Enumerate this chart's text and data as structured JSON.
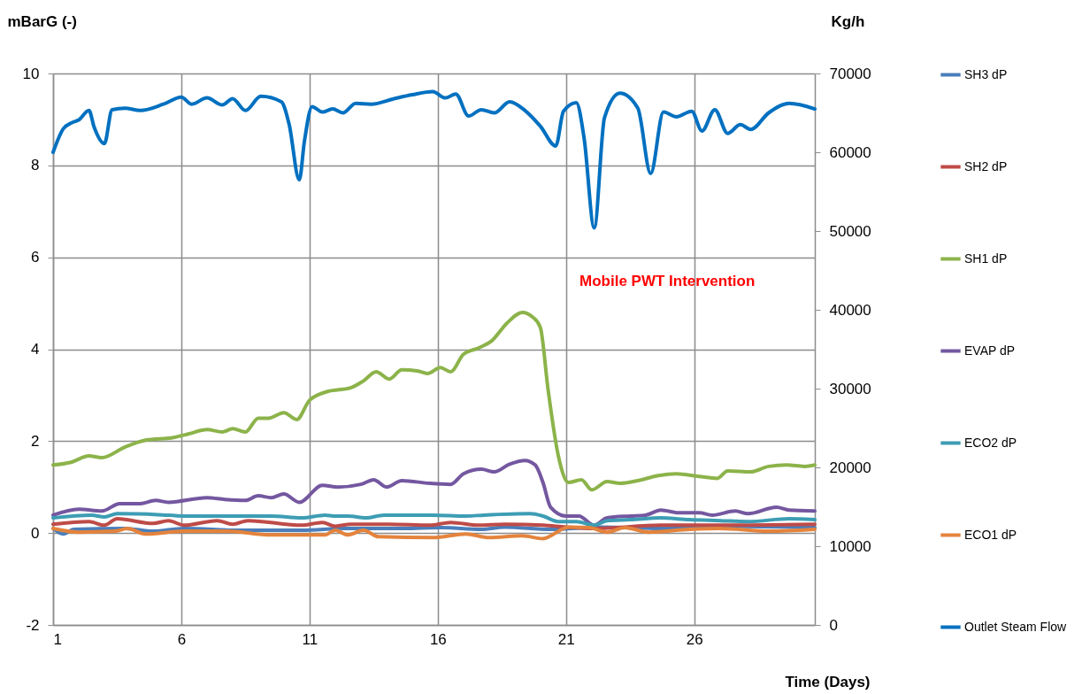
{
  "chart_data": {
    "type": "line",
    "xlabel": "Time (Days)",
    "ylabel": "mBarG (-)",
    "y2label": "Kg/h",
    "xlim": [
      1,
      30.7
    ],
    "xticks": [
      1,
      6,
      11,
      16,
      21,
      26
    ],
    "ylim": [
      -2,
      10
    ],
    "yticks": [
      -2,
      0,
      2,
      4,
      6,
      8,
      10
    ],
    "y2lim": [
      0,
      70000
    ],
    "y2ticks": [
      0,
      10000,
      20000,
      30000,
      40000,
      50000,
      60000,
      70000
    ],
    "grid": true,
    "legend": "right",
    "annotations": [
      "Mobile PWT Intervention"
    ],
    "series": [
      {
        "name": "SH3 dP",
        "color": "#4a7ebb",
        "x": [
          1,
          1.4,
          1.8,
          3.8,
          4.9,
          6.1,
          8.3,
          10.7,
          12.4,
          14.7,
          16.1,
          17.7,
          18.6,
          20.4,
          22.4,
          24.7,
          27,
          30.7
        ],
        "values": [
          0.1,
          -0.02,
          0.08,
          0.1,
          0.04,
          0.1,
          0.06,
          0.06,
          0.1,
          0.1,
          0.12,
          0.08,
          0.13,
          0.08,
          0.13,
          0.1,
          0.15,
          0.12
        ]
      },
      {
        "name": "SH2 dP",
        "color": "#be4b48",
        "x": [
          1,
          2.4,
          3,
          3.5,
          4.9,
          5.5,
          6.1,
          7.4,
          8,
          8.6,
          10.7,
          11.5,
          12,
          12.6,
          14.1,
          15.7,
          16.5,
          17.6,
          18.6,
          20.1,
          21,
          22.1,
          24.7,
          27,
          30.7
        ],
        "values": [
          0.19,
          0.25,
          0.17,
          0.31,
          0.21,
          0.27,
          0.17,
          0.27,
          0.19,
          0.27,
          0.17,
          0.23,
          0.15,
          0.19,
          0.19,
          0.17,
          0.23,
          0.17,
          0.19,
          0.17,
          0.13,
          0.1,
          0.17,
          0.17,
          0.19
        ]
      },
      {
        "name": "SH1 dP",
        "color": "#8cb34a",
        "x": [
          1,
          1.7,
          2.4,
          2.9,
          3.8,
          4.6,
          5.7,
          6.3,
          7,
          7.6,
          8,
          8.5,
          9,
          9.4,
          10,
          10.5,
          11,
          11.7,
          12.6,
          13.1,
          13.6,
          14.1,
          14.6,
          15.2,
          15.6,
          16.1,
          16.5,
          17,
          17.6,
          18.1,
          18.7,
          19.3,
          19.7,
          20,
          20.3,
          20.7,
          21.1,
          21.6,
          22,
          22.6,
          23.1,
          23.8,
          24.6,
          25.3,
          26.2,
          26.9,
          27.3,
          28.2,
          28.9,
          29.6,
          30.3,
          30.7
        ],
        "values": [
          1.48,
          1.54,
          1.68,
          1.64,
          1.87,
          2.02,
          2.08,
          2.16,
          2.25,
          2.2,
          2.27,
          2.2,
          2.5,
          2.5,
          2.62,
          2.47,
          2.89,
          3.08,
          3.16,
          3.31,
          3.51,
          3.35,
          3.55,
          3.53,
          3.47,
          3.6,
          3.51,
          3.89,
          4.03,
          4.18,
          4.57,
          4.8,
          4.7,
          4.47,
          3.12,
          1.68,
          1.1,
          1.16,
          0.94,
          1.12,
          1.08,
          1.14,
          1.25,
          1.29,
          1.23,
          1.19,
          1.35,
          1.33,
          1.45,
          1.48,
          1.45,
          1.48
        ]
      },
      {
        "name": "EVAP dP",
        "color": "#7457a0",
        "x": [
          1,
          2,
          2.9,
          3.6,
          4.4,
          5,
          5.5,
          7,
          7.7,
          8.5,
          9,
          9.5,
          10,
          10.6,
          11.5,
          12.1,
          13,
          13.5,
          14,
          14.6,
          15.7,
          16.5,
          17,
          17.7,
          18.2,
          18.8,
          19.4,
          19.8,
          20.1,
          20.4,
          21,
          21.5,
          22.1,
          22.6,
          23.5,
          24.1,
          24.7,
          25.4,
          26.2,
          26.7,
          27.6,
          28.1,
          29.2,
          29.7,
          30.7
        ],
        "values": [
          0.39,
          0.52,
          0.48,
          0.64,
          0.64,
          0.71,
          0.67,
          0.77,
          0.73,
          0.71,
          0.81,
          0.77,
          0.85,
          0.67,
          1.04,
          1,
          1.06,
          1.16,
          1,
          1.14,
          1.08,
          1.06,
          1.29,
          1.39,
          1.33,
          1.5,
          1.58,
          1.48,
          1.1,
          0.56,
          0.37,
          0.37,
          0.17,
          0.33,
          0.37,
          0.39,
          0.5,
          0.44,
          0.44,
          0.39,
          0.48,
          0.42,
          0.56,
          0.5,
          0.48
        ]
      },
      {
        "name": "ECO2 dP",
        "color": "#3d9db4",
        "x": [
          1,
          2.5,
          3,
          3.5,
          5.1,
          6.1,
          7.2,
          9.5,
          10.7,
          11.6,
          12,
          12.5,
          13.2,
          13.9,
          15.8,
          17.1,
          17.8,
          19.6,
          20.1,
          20.7,
          21.4,
          22.1,
          22.6,
          23.5,
          24.7,
          25.8,
          27,
          28.1,
          29.7,
          30.7
        ],
        "values": [
          0.33,
          0.39,
          0.35,
          0.42,
          0.4,
          0.37,
          0.37,
          0.37,
          0.33,
          0.39,
          0.37,
          0.37,
          0.33,
          0.39,
          0.39,
          0.37,
          0.39,
          0.42,
          0.37,
          0.25,
          0.25,
          0.17,
          0.27,
          0.29,
          0.33,
          0.29,
          0.27,
          0.25,
          0.31,
          0.29
        ]
      },
      {
        "name": "ECO1 dP",
        "color": "#e4833c",
        "x": [
          1,
          2,
          3.4,
          3.9,
          4.6,
          6.1,
          7.8,
          9.5,
          11.6,
          12,
          12.5,
          13.1,
          13.7,
          15.8,
          17.1,
          18,
          19.3,
          20.1,
          21.1,
          21.9,
          22.6,
          23.3,
          24.2,
          25.8,
          27,
          28.9,
          30.7
        ],
        "values": [
          0.1,
          0.02,
          0.04,
          0.1,
          -0.02,
          0.04,
          0.04,
          -0.04,
          -0.04,
          0.06,
          -0.04,
          0.06,
          -0.08,
          -0.1,
          -0.02,
          -0.1,
          -0.06,
          -0.12,
          0.13,
          0.12,
          0.02,
          0.12,
          0.02,
          0.08,
          0.1,
          0.04,
          0.08
        ]
      },
      {
        "name": "Outlet Steam Flow",
        "color": "#0070c0",
        "axis": "y2",
        "x": [
          1,
          1.4,
          1.7,
          2,
          2.4,
          2.6,
          3,
          3.3,
          3.8,
          4.4,
          5.3,
          6,
          6.4,
          7,
          7.6,
          8,
          8.5,
          9.1,
          9.9,
          10.2,
          10.6,
          10.8,
          11.1,
          11.5,
          11.9,
          12.3,
          12.8,
          13.4,
          14.3,
          15,
          15.8,
          16.3,
          16.7,
          17.2,
          17.7,
          18.2,
          18.8,
          19.4,
          20,
          20.6,
          20.9,
          21.4,
          21.7,
          22.1,
          22.5,
          23.1,
          23.8,
          24.3,
          24.8,
          25.3,
          25.9,
          26.3,
          26.8,
          27.3,
          27.8,
          28.2,
          28.9,
          29.7,
          30.7
        ],
        "values": [
          60000,
          63000,
          63700,
          64100,
          65300,
          63200,
          61100,
          65400,
          65600,
          65300,
          66100,
          67000,
          66100,
          66900,
          66000,
          66800,
          65300,
          67100,
          66400,
          63600,
          56500,
          61400,
          65800,
          65100,
          65500,
          65000,
          66200,
          66100,
          66800,
          67300,
          67700,
          66900,
          67400,
          64600,
          65400,
          65000,
          66400,
          65300,
          63300,
          60800,
          65200,
          66300,
          61900,
          50400,
          64400,
          67500,
          65600,
          57300,
          65100,
          64500,
          65200,
          62700,
          65400,
          62400,
          63500,
          62900,
          65000,
          66200,
          65500
        ]
      }
    ]
  }
}
